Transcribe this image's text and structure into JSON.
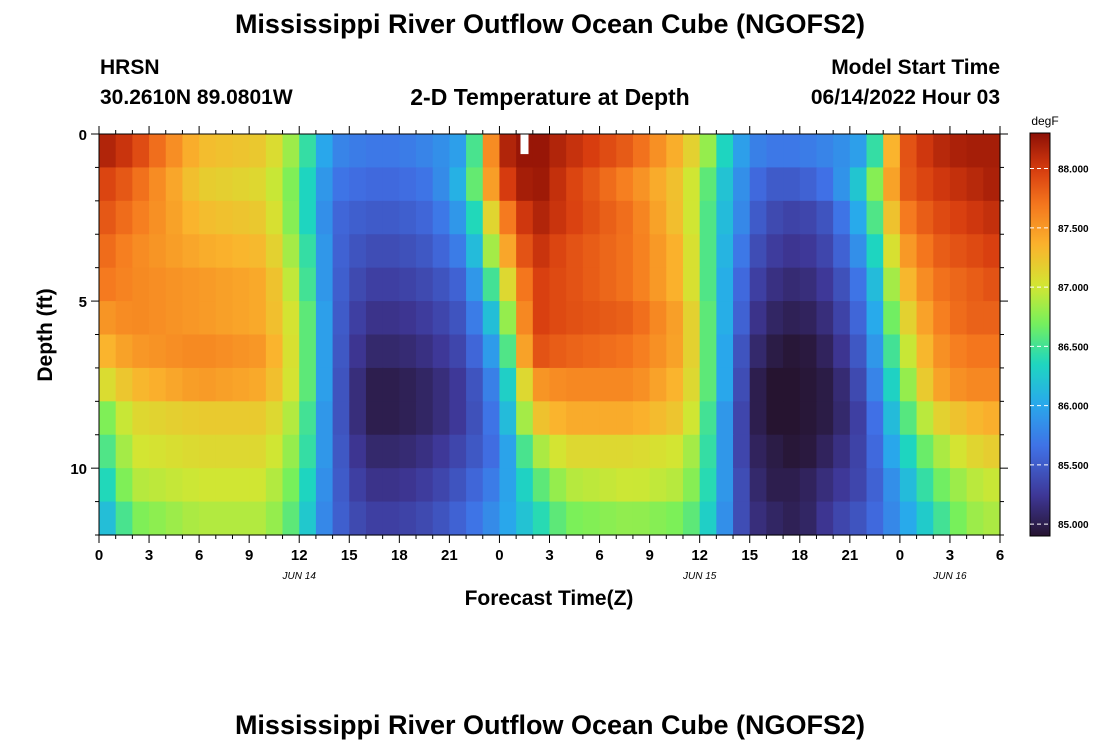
{
  "page": {
    "title_top": "Mississippi River Outflow Ocean Cube (NGOFS2)",
    "title_bottom": "Mississippi River Outflow Ocean Cube (NGOFS2)",
    "station_name": "HRSN",
    "station_coords": "30.2610N  89.0801W",
    "plot_subtitle": "2-D Temperature at Depth",
    "model_start_label": "Model Start Time",
    "model_start_value": "06/14/2022 Hour 03"
  },
  "chart_data": {
    "type": "heatmap",
    "title": "2-D Temperature at Depth",
    "xlabel": "Forecast Time(Z)",
    "ylabel": "Depth (ft)",
    "x_range_hours": [
      0,
      54
    ],
    "y_range_ft": [
      0,
      12
    ],
    "x_ticks": [
      {
        "h": 0,
        "label": "0"
      },
      {
        "h": 3,
        "label": "3"
      },
      {
        "h": 6,
        "label": "6"
      },
      {
        "h": 9,
        "label": "9"
      },
      {
        "h": 12,
        "label": "12"
      },
      {
        "h": 15,
        "label": "15"
      },
      {
        "h": 18,
        "label": "18"
      },
      {
        "h": 21,
        "label": "21"
      },
      {
        "h": 24,
        "label": "0"
      },
      {
        "h": 27,
        "label": "3"
      },
      {
        "h": 30,
        "label": "6"
      },
      {
        "h": 33,
        "label": "9"
      },
      {
        "h": 36,
        "label": "12"
      },
      {
        "h": 39,
        "label": "15"
      },
      {
        "h": 42,
        "label": "18"
      },
      {
        "h": 45,
        "label": "21"
      },
      {
        "h": 48,
        "label": "0"
      },
      {
        "h": 51,
        "label": "3"
      },
      {
        "h": 54,
        "label": "6"
      }
    ],
    "date_labels": [
      {
        "h": 12,
        "label": "JUN 14"
      },
      {
        "h": 36,
        "label": "JUN 15"
      },
      {
        "h": 51,
        "label": "JUN 16"
      }
    ],
    "y_ticks": [
      {
        "v": 0,
        "label": "0"
      },
      {
        "v": 5,
        "label": "5"
      },
      {
        "v": 10,
        "label": "10"
      }
    ],
    "colorbar": {
      "units": "degF",
      "range": [
        84.9,
        88.3
      ],
      "ticks": [
        {
          "v": 88.0,
          "label": "88.000"
        },
        {
          "v": 87.5,
          "label": "87.500"
        },
        {
          "v": 87.0,
          "label": "87.000"
        },
        {
          "v": 86.5,
          "label": "86.500"
        },
        {
          "v": 86.0,
          "label": "86.000"
        },
        {
          "v": 85.5,
          "label": "85.500"
        },
        {
          "v": 85.0,
          "label": "85.000"
        }
      ]
    },
    "depth_levels_ft": [
      0.5,
      1.5,
      2.5,
      3.5,
      4.5,
      5.5,
      6.5,
      7.5,
      8.5,
      9.5,
      10.5,
      11.5
    ],
    "hour_step": 1,
    "value_profile_description": "temperature degF per depth row estimated at key forecast hours",
    "key_hours": [
      0,
      2,
      6,
      10,
      12,
      13,
      14,
      16,
      18,
      20,
      22,
      24,
      26,
      28,
      32,
      35,
      36,
      37,
      38,
      39,
      40,
      42,
      44,
      46,
      48,
      50,
      52,
      54
    ],
    "rows": [
      {
        "depth": 0.5,
        "values": [
          88.2,
          88.0,
          87.3,
          87.2,
          86.7,
          86.2,
          85.8,
          85.7,
          85.7,
          85.8,
          86.0,
          88.1,
          88.3,
          88.1,
          87.8,
          87.3,
          87.0,
          86.6,
          86.1,
          85.8,
          85.7,
          85.7,
          85.8,
          86.0,
          87.8,
          88.1,
          88.2,
          88.2
        ]
      },
      {
        "depth": 1.5,
        "values": [
          88.0,
          87.8,
          87.2,
          87.1,
          86.6,
          86.1,
          85.7,
          85.6,
          85.6,
          85.7,
          86.2,
          87.9,
          88.3,
          88.0,
          87.6,
          87.2,
          86.8,
          86.4,
          86.0,
          85.7,
          85.5,
          85.5,
          85.7,
          86.4,
          87.8,
          88.0,
          88.1,
          88.2
        ]
      },
      {
        "depth": 2.5,
        "values": [
          87.9,
          87.7,
          87.3,
          87.2,
          86.6,
          86.1,
          85.6,
          85.5,
          85.5,
          85.6,
          86.0,
          87.5,
          88.2,
          88.0,
          87.7,
          87.2,
          86.8,
          86.3,
          86.0,
          85.6,
          85.4,
          85.3,
          85.5,
          86.2,
          87.6,
          87.9,
          88.0,
          88.1
        ]
      },
      {
        "depth": 3.5,
        "values": [
          87.8,
          87.6,
          87.4,
          87.3,
          86.7,
          86.2,
          85.6,
          85.4,
          85.4,
          85.5,
          85.8,
          87.2,
          88.1,
          87.9,
          87.7,
          87.3,
          86.8,
          86.3,
          85.9,
          85.5,
          85.3,
          85.2,
          85.4,
          86.0,
          87.4,
          87.8,
          87.9,
          88.0
        ]
      },
      {
        "depth": 4.5,
        "values": [
          87.7,
          87.6,
          87.5,
          87.4,
          86.8,
          86.2,
          85.6,
          85.3,
          85.3,
          85.4,
          85.6,
          86.8,
          88.0,
          87.9,
          87.7,
          87.3,
          86.8,
          86.3,
          85.8,
          85.4,
          85.2,
          85.1,
          85.3,
          85.8,
          87.2,
          87.7,
          87.8,
          87.9
        ]
      },
      {
        "depth": 5.5,
        "values": [
          87.5,
          87.6,
          87.5,
          87.4,
          86.9,
          86.3,
          85.6,
          85.2,
          85.2,
          85.3,
          85.5,
          86.4,
          88.0,
          87.9,
          87.8,
          87.4,
          86.9,
          86.3,
          85.8,
          85.3,
          85.1,
          85.0,
          85.2,
          85.7,
          87.0,
          87.6,
          87.8,
          87.8
        ]
      },
      {
        "depth": 6.5,
        "values": [
          87.3,
          87.5,
          87.6,
          87.5,
          86.9,
          86.3,
          85.6,
          85.1,
          85.1,
          85.2,
          85.4,
          86.1,
          87.9,
          87.8,
          87.7,
          87.4,
          86.9,
          86.3,
          85.7,
          85.2,
          85.0,
          84.9,
          85.1,
          85.6,
          86.8,
          87.5,
          87.7,
          87.7
        ]
      },
      {
        "depth": 7.5,
        "values": [
          87.0,
          87.3,
          87.5,
          87.4,
          86.9,
          86.3,
          85.6,
          85.0,
          85.0,
          85.1,
          85.3,
          85.9,
          87.5,
          87.6,
          87.6,
          87.3,
          86.9,
          86.3,
          85.7,
          85.1,
          84.9,
          84.9,
          85.0,
          85.5,
          86.6,
          87.4,
          87.6,
          87.6
        ]
      },
      {
        "depth": 8.5,
        "values": [
          86.6,
          87.1,
          87.2,
          87.2,
          86.8,
          86.2,
          85.6,
          85.0,
          85.0,
          85.1,
          85.3,
          85.8,
          87.2,
          87.4,
          87.4,
          87.2,
          86.8,
          86.2,
          85.6,
          85.1,
          84.9,
          84.9,
          85.0,
          85.4,
          86.4,
          87.1,
          87.3,
          87.4
        ]
      },
      {
        "depth": 9.5,
        "values": [
          86.4,
          87.0,
          87.1,
          87.1,
          86.7,
          86.2,
          85.6,
          85.1,
          85.1,
          85.2,
          85.4,
          85.7,
          86.8,
          87.1,
          87.1,
          87.0,
          86.7,
          86.2,
          85.6,
          85.1,
          85.0,
          84.9,
          85.1,
          85.4,
          86.2,
          86.8,
          87.1,
          87.2
        ]
      },
      {
        "depth": 10.5,
        "values": [
          86.2,
          86.9,
          87.0,
          87.0,
          86.6,
          86.1,
          85.6,
          85.2,
          85.2,
          85.3,
          85.5,
          85.8,
          86.5,
          86.9,
          87.0,
          86.9,
          86.6,
          86.2,
          85.6,
          85.2,
          85.0,
          85.0,
          85.2,
          85.4,
          86.0,
          86.6,
          86.9,
          87.0
        ]
      },
      {
        "depth": 11.5,
        "values": [
          86.0,
          86.7,
          86.9,
          86.9,
          86.5,
          86.0,
          85.6,
          85.3,
          85.3,
          85.4,
          85.6,
          85.9,
          86.3,
          86.7,
          86.8,
          86.7,
          86.5,
          86.1,
          85.6,
          85.2,
          85.1,
          85.0,
          85.3,
          85.5,
          85.9,
          86.4,
          86.8,
          86.9
        ]
      }
    ],
    "gap_marker": {
      "hour": 25.5,
      "depth_range": [
        0,
        0.6
      ]
    }
  }
}
